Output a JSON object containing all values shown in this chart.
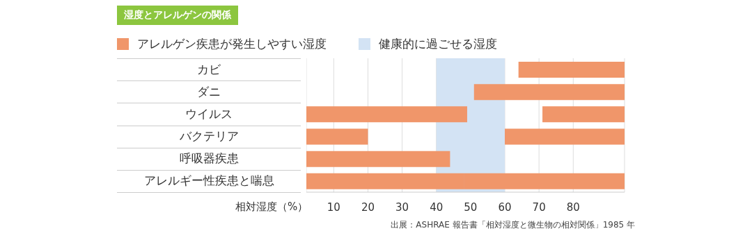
{
  "chart_data": {
    "type": "bar",
    "orientation": "horizontal",
    "title": "湿度とアレルゲンの関係",
    "xlabel": "相対湿度（%）",
    "categories": [
      "カビ",
      "ダニ",
      "ウイルス",
      "バクテリア",
      "呼吸器疾患",
      "アレルギー性疾患と喘息"
    ],
    "series": [
      {
        "name": "アレルゲン疾患が発生しやすい湿度",
        "color": "#f0966a",
        "base": [
          null,
          null,
          2,
          2,
          2,
          2
        ],
        "values": [
          null,
          null,
          47,
          18,
          42,
          46
        ]
      },
      {
        "color": "#f0966a",
        "base": [
          64,
          51,
          71,
          60,
          null,
          48
        ],
        "values": [
          31,
          44,
          24,
          35,
          null,
          47
        ]
      }
    ],
    "bands": [
      {
        "axis": "x",
        "from": 40,
        "to": 60,
        "label": "健康的に過ごせる湿度",
        "color": "#d3e3f4"
      }
    ],
    "xlim": [
      2,
      95
    ],
    "xticks": [
      10,
      20,
      30,
      40,
      50,
      60,
      70,
      80
    ],
    "grid": "x",
    "legend": "top left",
    "annotations": [
      "出展：ASHRAE 報告書「相対湿度と微生物の相対関係」1985 年"
    ]
  }
}
